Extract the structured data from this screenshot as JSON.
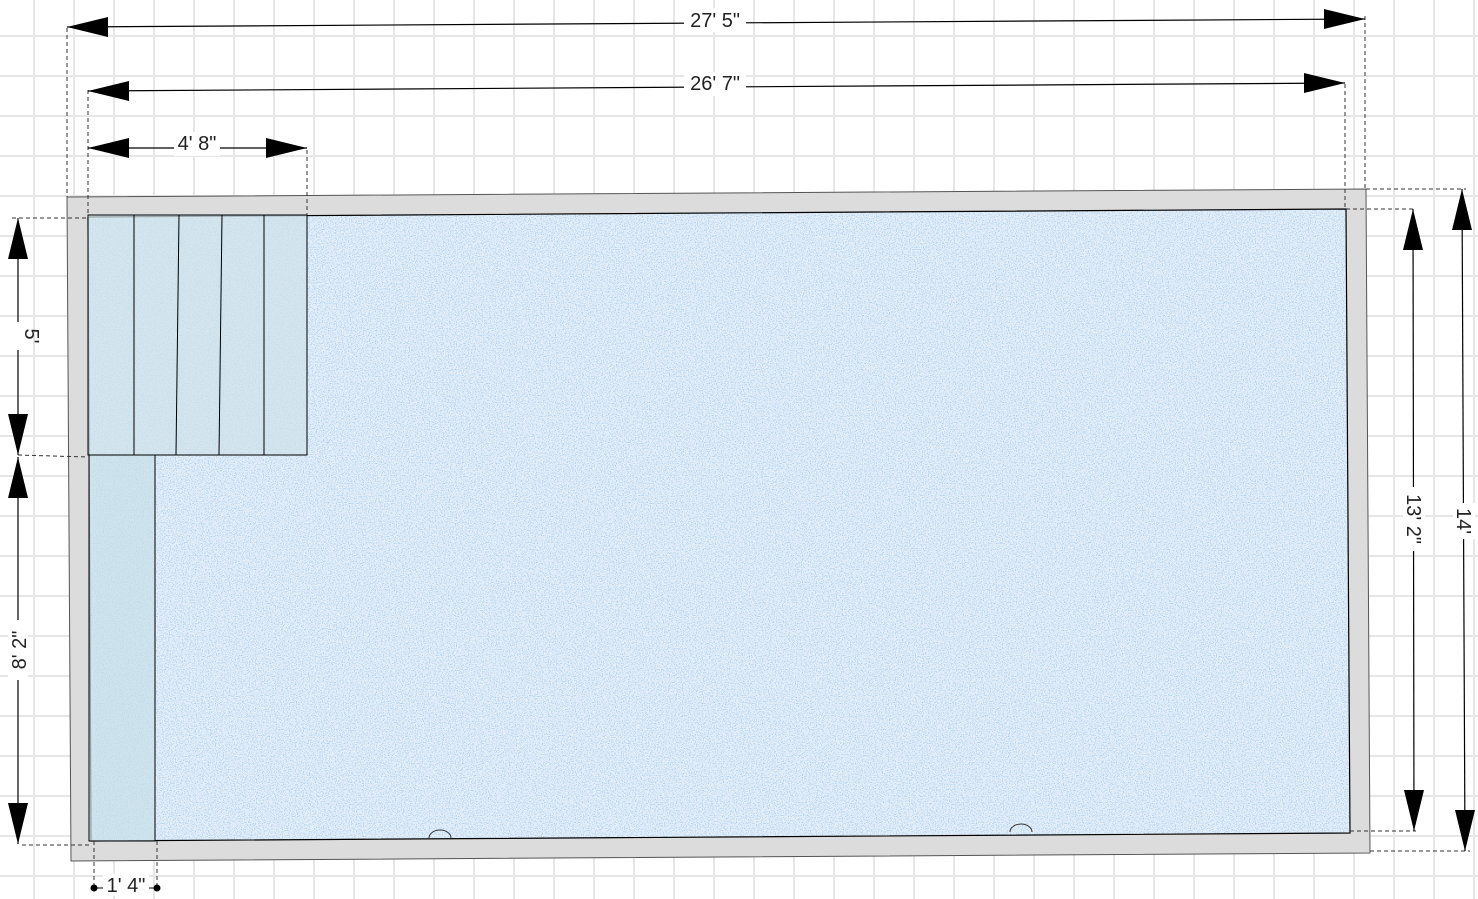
{
  "diagram": {
    "type": "pool-plan",
    "colors": {
      "grid": "#e6e6e6",
      "coping": "#dcdcdc",
      "water": "#dce9f6",
      "water_speckle": "#6aa2dc",
      "steps": "#cfe2ea",
      "bench": "#c8e0ea",
      "line": "#000000"
    },
    "icons": [
      "arrow-icon",
      "return-fitting-icon"
    ],
    "dimensions": {
      "overall_length": "27' 5\"",
      "interior_length": "26' 7\"",
      "steps_width": "4' 8\"",
      "steps_depth": "5'",
      "bench_length": "8' 2\"",
      "bench_width": "1' 4\"",
      "interior_width": "13' 2\"",
      "overall_width": "14'"
    }
  }
}
